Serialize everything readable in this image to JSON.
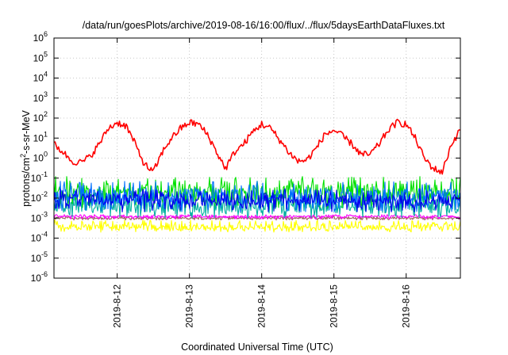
{
  "chart_data": {
    "type": "line",
    "title": "/data/run/goesPlots/archive/2019-08-16/16:00/flux/../flux/5daysEarthDataFluxes.txt",
    "xlabel": "Coordinated Universal Time (UTC)",
    "ylabel": "protons/cm²-s-sr-MeV",
    "yscale": "log",
    "ylim": [
      1e-06,
      1000000.0
    ],
    "xlim": [
      "2019-08-11 03:00",
      "2019-08-16 18:00"
    ],
    "x_ticks": [
      "2019-8-12",
      "2019-8-13",
      "2019-8-14",
      "2019-8-15",
      "2019-8-16"
    ],
    "y_ticks": [
      {
        "base": "10",
        "exp": "-6"
      },
      {
        "base": "10",
        "exp": "-5"
      },
      {
        "base": "10",
        "exp": "-4"
      },
      {
        "base": "10",
        "exp": "-3"
      },
      {
        "base": "10",
        "exp": "-2"
      },
      {
        "base": "10",
        "exp": "-1"
      },
      {
        "base": "10",
        "exp": "0"
      },
      {
        "base": "10",
        "exp": "1"
      },
      {
        "base": "10",
        "exp": "2"
      },
      {
        "base": "10",
        "exp": "3"
      },
      {
        "base": "10",
        "exp": "4"
      },
      {
        "base": "10",
        "exp": "5"
      },
      {
        "base": "10",
        "exp": "6"
      }
    ],
    "grid": true,
    "series": [
      {
        "color": "#ff0000",
        "x": [
          "2019-08-11 03:00",
          "2019-08-11 06:00",
          "2019-08-11 09:00",
          "2019-08-11 12:00",
          "2019-08-11 15:00",
          "2019-08-11 18:00",
          "2019-08-11 21:00",
          "2019-08-12 00:00",
          "2019-08-12 03:00",
          "2019-08-12 06:00",
          "2019-08-12 09:00",
          "2019-08-12 12:00",
          "2019-08-12 15:00",
          "2019-08-12 18:00",
          "2019-08-12 21:00",
          "2019-08-13 00:00",
          "2019-08-13 03:00",
          "2019-08-13 06:00",
          "2019-08-13 09:00",
          "2019-08-13 12:00",
          "2019-08-13 15:00",
          "2019-08-13 18:00",
          "2019-08-13 21:00",
          "2019-08-14 00:00",
          "2019-08-14 03:00",
          "2019-08-14 06:00",
          "2019-08-14 09:00",
          "2019-08-14 12:00",
          "2019-08-14 15:00",
          "2019-08-14 18:00",
          "2019-08-14 21:00",
          "2019-08-15 00:00",
          "2019-08-15 03:00",
          "2019-08-15 06:00",
          "2019-08-15 09:00",
          "2019-08-15 12:00",
          "2019-08-15 15:00",
          "2019-08-15 18:00",
          "2019-08-15 21:00",
          "2019-08-16 00:00",
          "2019-08-16 03:00",
          "2019-08-16 06:00",
          "2019-08-16 09:00",
          "2019-08-16 12:00",
          "2019-08-16 15:00",
          "2019-08-16 18:00"
        ],
        "y": [
          5,
          2,
          0.7,
          0.6,
          1.2,
          5,
          30,
          60,
          40,
          5,
          0.5,
          0.2,
          2,
          10,
          30,
          60,
          50,
          15,
          2,
          0.3,
          2,
          5,
          20,
          50,
          30,
          8,
          2,
          0.7,
          0.8,
          3,
          15,
          25,
          12,
          5,
          1.5,
          1.5,
          5,
          25,
          60,
          50,
          10,
          1,
          0.3,
          0.2,
          5,
          25
        ]
      },
      {
        "color": "#00e000",
        "level": 0.02,
        "min": 0.003,
        "max": 0.12
      },
      {
        "color": "#0070ff",
        "level": 0.012,
        "min": 0.002,
        "max": 0.07
      },
      {
        "color": "#00b0a0",
        "level": 0.004,
        "min": 0.001,
        "max": 0.03
      },
      {
        "color": "#0000ee",
        "level": 0.008,
        "min": 0.002,
        "max": 0.03
      },
      {
        "color": "#ff00ff",
        "level": 0.0012,
        "min": 0.0009,
        "max": 0.0015
      },
      {
        "color": "#a06060",
        "level": 0.001,
        "min": 0.0008,
        "max": 0.0013
      },
      {
        "color": "#ffff00",
        "level": 0.00035,
        "min": 0.0002,
        "max": 0.0008
      }
    ]
  }
}
